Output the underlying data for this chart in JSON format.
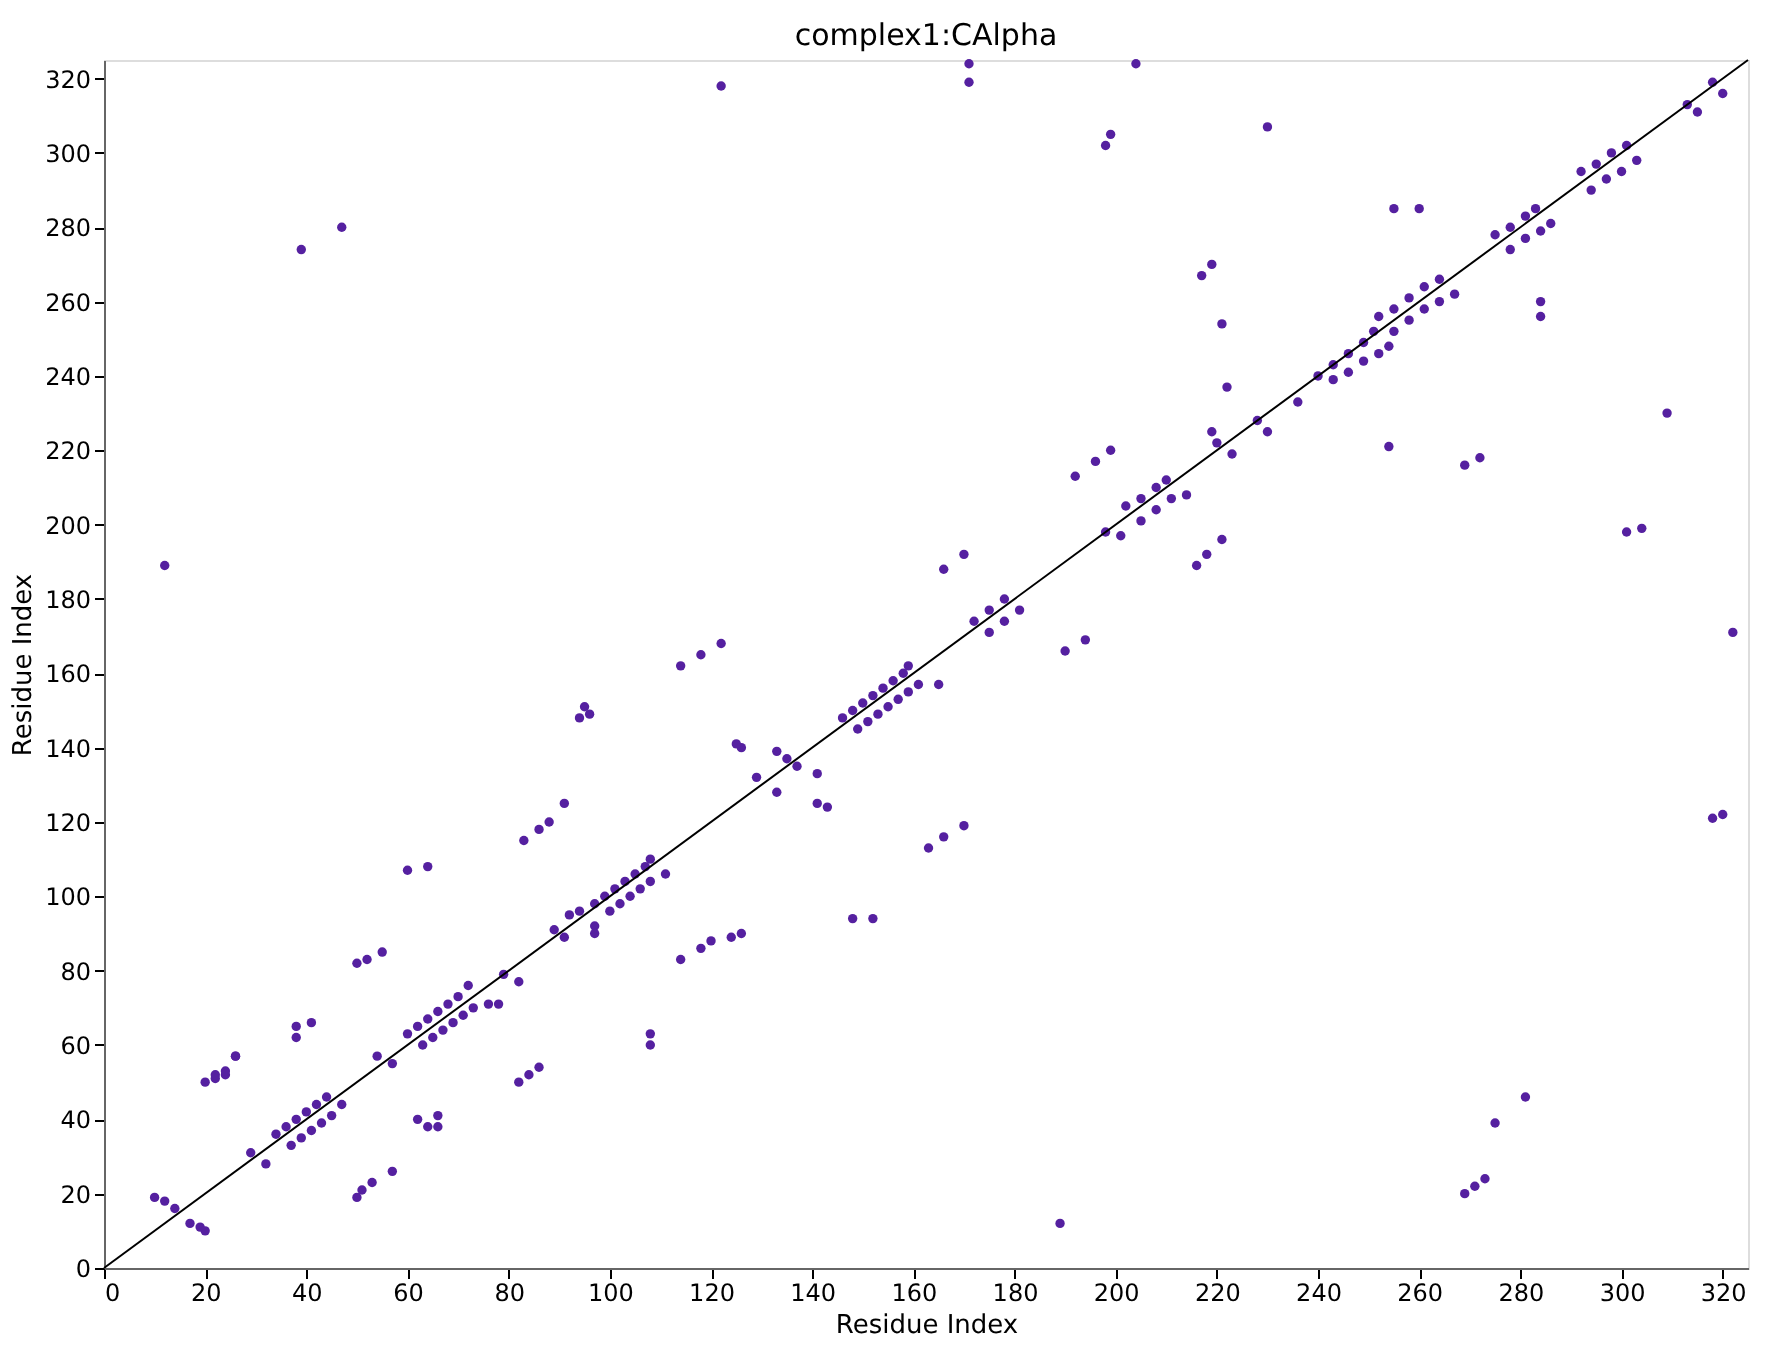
{
  "chart_data": {
    "type": "scatter",
    "title": "complex1:CAlpha",
    "xlabel": "Residue Index",
    "ylabel": "Residue Index",
    "xlim": [
      0,
      325
    ],
    "ylim": [
      0,
      325
    ],
    "xticks": [
      0,
      20,
      40,
      60,
      80,
      100,
      120,
      140,
      160,
      180,
      200,
      220,
      240,
      260,
      280,
      300,
      320
    ],
    "yticks": [
      0,
      20,
      40,
      60,
      80,
      100,
      120,
      140,
      160,
      180,
      200,
      220,
      240,
      260,
      280,
      300,
      320
    ],
    "grid": false,
    "series": [
      {
        "color": "#5520a0",
        "marker": "circle",
        "x": [
          10,
          12,
          14,
          17,
          19,
          20,
          12,
          22,
          24,
          26,
          39,
          47,
          20,
          22,
          24,
          26,
          29,
          32,
          34,
          36,
          38,
          40,
          42,
          44,
          37,
          39,
          41,
          43,
          45,
          47,
          38,
          38,
          41,
          50,
          51,
          53,
          57,
          50,
          52,
          55,
          54,
          57,
          60,
          64,
          62,
          64,
          66,
          66,
          60,
          62,
          64,
          66,
          68,
          70,
          72,
          63,
          65,
          67,
          69,
          71,
          73,
          76,
          78,
          79,
          82,
          82,
          84,
          86,
          83,
          86,
          88,
          91,
          89,
          91,
          92,
          94,
          94,
          95,
          96,
          97,
          97,
          97,
          99,
          101,
          103,
          105,
          107,
          108,
          100,
          102,
          104,
          106,
          108,
          111,
          108,
          108,
          114,
          118,
          120,
          124,
          126,
          114,
          118,
          122,
          122,
          125,
          126,
          129,
          133,
          133,
          135,
          137,
          141,
          141,
          143,
          146,
          148,
          150,
          152,
          154,
          156,
          158,
          159,
          149,
          151,
          153,
          155,
          157,
          159,
          161,
          165,
          148,
          152,
          163,
          166,
          170,
          166,
          170,
          171,
          171,
          204,
          172,
          175,
          178,
          175,
          178,
          181,
          190,
          194,
          189,
          192,
          196,
          199,
          198,
          199,
          198,
          201,
          202,
          205,
          208,
          210,
          205,
          208,
          211,
          214,
          216,
          218,
          221,
          217,
          219,
          219,
          220,
          223,
          221,
          222,
          228,
          230,
          230,
          236,
          240,
          243,
          246,
          249,
          251,
          243,
          246,
          249,
          252,
          254,
          252,
          255,
          258,
          261,
          264,
          255,
          258,
          261,
          264,
          267,
          255,
          260,
          254,
          269,
          272,
          269,
          271,
          273,
          275,
          281,
          275,
          278,
          281,
          283,
          278,
          281,
          284,
          286,
          284,
          284,
          292,
          295,
          298,
          301,
          294,
          297,
          300,
          303,
          301,
          304,
          309,
          313,
          315,
          318,
          320,
          318,
          320,
          322
        ],
        "values": [
          19,
          18,
          16,
          12,
          11,
          10,
          189,
          51,
          52,
          57,
          274,
          280,
          50,
          52,
          53,
          57,
          31,
          28,
          36,
          38,
          40,
          42,
          44,
          46,
          33,
          35,
          37,
          39,
          41,
          44,
          62,
          65,
          66,
          19,
          21,
          23,
          26,
          82,
          83,
          85,
          57,
          55,
          107,
          108,
          40,
          38,
          38,
          41,
          63,
          65,
          67,
          69,
          71,
          73,
          76,
          60,
          62,
          64,
          66,
          68,
          70,
          71,
          71,
          79,
          77,
          50,
          52,
          54,
          115,
          118,
          120,
          125,
          91,
          89,
          95,
          96,
          148,
          151,
          149,
          92,
          90,
          98,
          100,
          102,
          104,
          106,
          108,
          110,
          96,
          98,
          100,
          102,
          104,
          106,
          60,
          63,
          83,
          86,
          88,
          89,
          90,
          162,
          165,
          168,
          318,
          141,
          140,
          132,
          128,
          139,
          137,
          135,
          133,
          125,
          124,
          148,
          150,
          152,
          154,
          156,
          158,
          160,
          162,
          145,
          147,
          149,
          151,
          153,
          155,
          157,
          157,
          94,
          94,
          113,
          116,
          119,
          188,
          192,
          324,
          319,
          324,
          174,
          177,
          180,
          171,
          174,
          177,
          166,
          169,
          12,
          213,
          217,
          220,
          302,
          305,
          198,
          197,
          205,
          207,
          210,
          212,
          201,
          204,
          207,
          208,
          189,
          192,
          196,
          267,
          270,
          225,
          222,
          219,
          254,
          237,
          228,
          225,
          307,
          233,
          240,
          243,
          246,
          249,
          252,
          239,
          241,
          244,
          246,
          248,
          256,
          258,
          261,
          264,
          266,
          252,
          255,
          258,
          260,
          262,
          285,
          285,
          221,
          216,
          218,
          20,
          22,
          24,
          39,
          46,
          278,
          280,
          283,
          285,
          274,
          277,
          279,
          281,
          260,
          256,
          295,
          297,
          300,
          302,
          290,
          293,
          295,
          298,
          198,
          199,
          230,
          313,
          311,
          319,
          316,
          121,
          122,
          171
        ]
      },
      {
        "type": "line",
        "marker": "none",
        "color": "#000000",
        "x": [
          0,
          325
        ],
        "values": [
          0,
          325
        ]
      }
    ]
  }
}
